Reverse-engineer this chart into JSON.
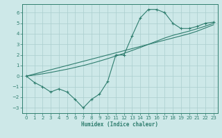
{
  "xlabel": "Humidex (Indice chaleur)",
  "x": [
    0,
    1,
    2,
    3,
    4,
    5,
    6,
    7,
    8,
    9,
    10,
    11,
    12,
    13,
    14,
    15,
    16,
    17,
    18,
    19,
    20,
    21,
    22,
    23
  ],
  "y_main": [
    0.0,
    -0.6,
    -1.0,
    -1.5,
    -1.2,
    -1.5,
    -2.2,
    -3.0,
    -2.2,
    -1.7,
    -0.5,
    2.0,
    2.0,
    3.8,
    5.5,
    6.3,
    6.3,
    6.0,
    5.0,
    4.5,
    4.5,
    4.7,
    5.0,
    5.1
  ],
  "y_line1": [
    0.0,
    0.2,
    0.4,
    0.6,
    0.8,
    1.0,
    1.2,
    1.4,
    1.6,
    1.8,
    2.0,
    2.2,
    2.4,
    2.6,
    2.8,
    3.0,
    3.2,
    3.4,
    3.6,
    3.8,
    4.0,
    4.25,
    4.55,
    4.85
  ],
  "y_line2": [
    0.0,
    0.1,
    0.22,
    0.35,
    0.5,
    0.65,
    0.82,
    1.0,
    1.2,
    1.42,
    1.65,
    1.9,
    2.15,
    2.42,
    2.7,
    3.0,
    3.3,
    3.6,
    3.85,
    4.05,
    4.25,
    4.48,
    4.72,
    5.0
  ],
  "ylim": [
    -3.5,
    6.8
  ],
  "xlim": [
    -0.5,
    23.5
  ],
  "yticks": [
    -3,
    -2,
    -1,
    0,
    1,
    2,
    3,
    4,
    5,
    6
  ],
  "xticks": [
    0,
    1,
    2,
    3,
    4,
    5,
    6,
    7,
    8,
    9,
    10,
    11,
    12,
    13,
    14,
    15,
    16,
    17,
    18,
    19,
    20,
    21,
    22,
    23
  ],
  "line_color": "#2e7d6e",
  "bg_color": "#cde8e8",
  "grid_color": "#aacece"
}
